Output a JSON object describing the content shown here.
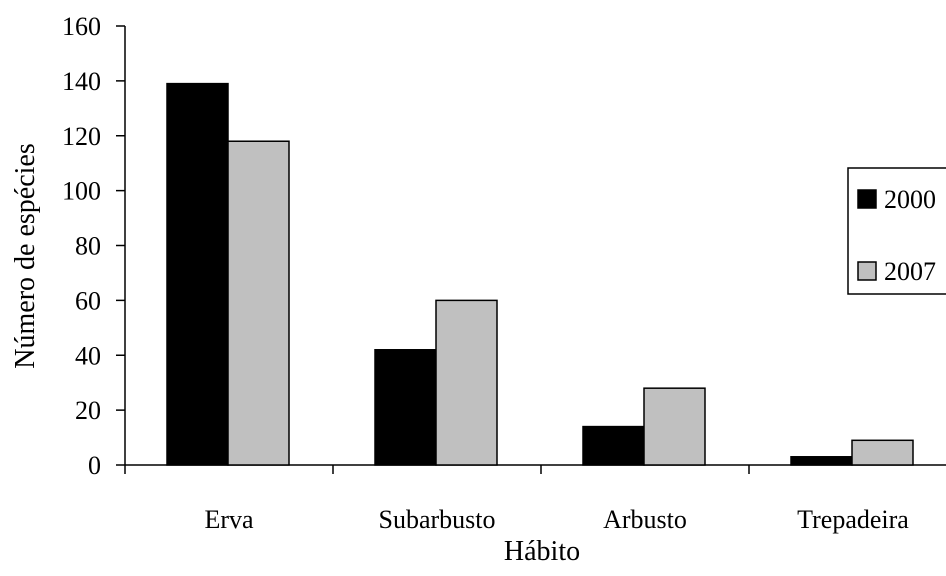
{
  "chart_data": {
    "type": "bar",
    "categories": [
      "Erva",
      "Subarbusto",
      "Arbusto",
      "Trepadeira"
    ],
    "series": [
      {
        "name": "2000",
        "values": [
          139,
          42,
          14,
          3
        ],
        "color": "#000000"
      },
      {
        "name": "2007",
        "values": [
          118,
          60,
          28,
          9
        ],
        "color": "#c0c0c0"
      }
    ],
    "xlabel": "Hábito",
    "ylabel": "Número de espécies",
    "ylim": [
      0,
      160
    ],
    "yticks": [
      0,
      20,
      40,
      60,
      80,
      100,
      120,
      140,
      160
    ],
    "grid": false,
    "legend_position": "right"
  }
}
